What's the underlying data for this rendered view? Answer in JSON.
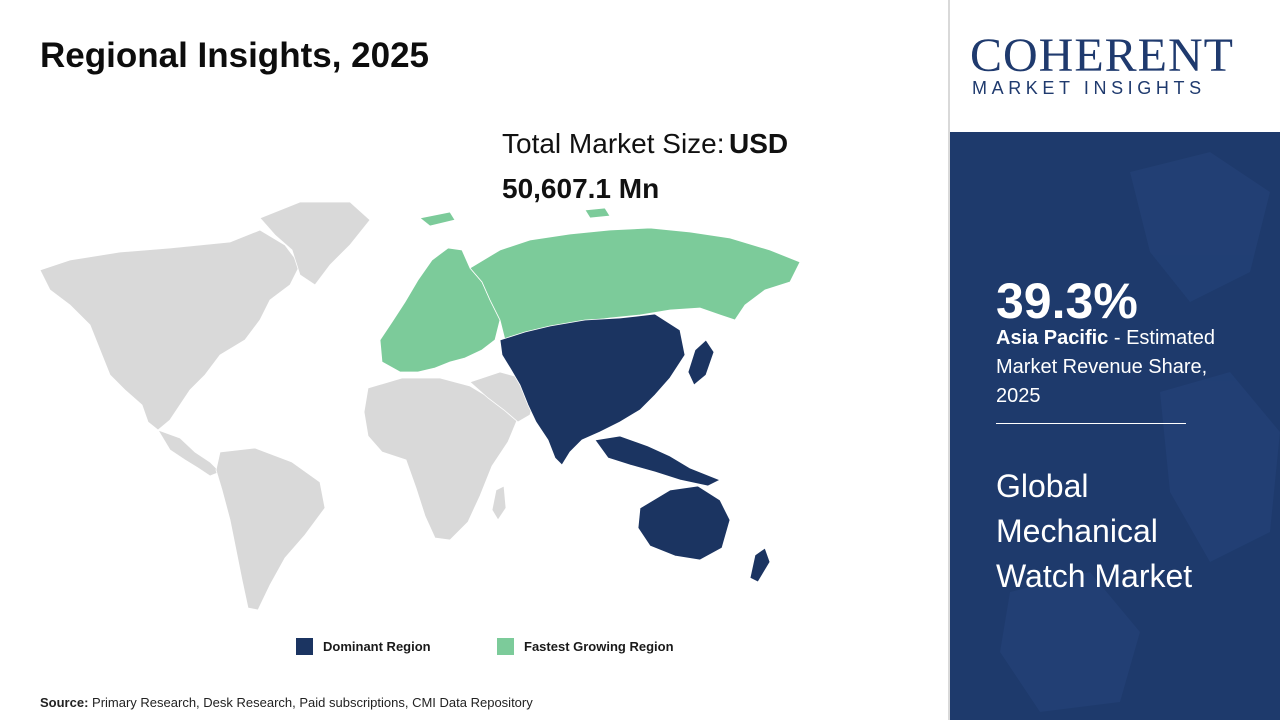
{
  "header": {
    "title": "Regional Insights, 2025"
  },
  "market_size": {
    "label": "Total Market Size:",
    "currency": "USD",
    "value": "50,607.1 Mn"
  },
  "legend": {
    "dominant": {
      "label": "Dominant Region",
      "color": "#1b3461"
    },
    "fastest": {
      "label": "Fastest Growing Region",
      "color": "#7ccb9a"
    }
  },
  "map": {
    "base_color": "#d9d9d9",
    "dominant_region": "Asia Pacific",
    "fastest_region": "Europe"
  },
  "source": {
    "label": "Source:",
    "text": "Primary Research, Desk Research, Paid subscriptions, CMI Data Repository"
  },
  "logo": {
    "main": "COHERENT",
    "sub": "MARKET INSIGHTS",
    "color": "#1f3a6e"
  },
  "highlight": {
    "share": "39.3%",
    "region": "Asia Pacific",
    "desc": "- Estimated Market Revenue Share, 2025",
    "panel_color": "#1e3a6c"
  },
  "market_name": {
    "line1": "Global",
    "line2": "Mechanical",
    "line3": "Watch Market"
  }
}
